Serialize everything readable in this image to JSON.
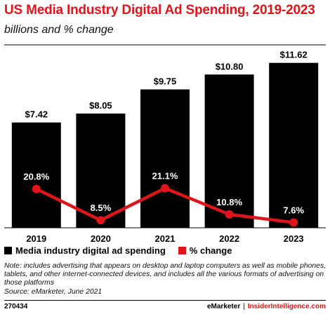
{
  "header": {
    "title": "US Media Industry Digital Ad Spending, 2019-2023",
    "subtitle": "billions and % change"
  },
  "colors": {
    "title": "#e0151c",
    "bar": "#000000",
    "line": "#e0151c"
  },
  "chart_data": {
    "type": "bar",
    "categories": [
      "2019",
      "2020",
      "2021",
      "2022",
      "2023"
    ],
    "series": [
      {
        "name": "Media industry digital ad spending",
        "type": "bar",
        "values": [
          7.42,
          8.05,
          9.75,
          10.8,
          11.62
        ],
        "labels": [
          "$7.42",
          "$8.05",
          "$9.75",
          "$10.80",
          "$11.62"
        ]
      },
      {
        "name": "% change",
        "type": "line",
        "values": [
          20.8,
          8.5,
          21.1,
          10.8,
          7.6
        ],
        "labels": [
          "20.8%",
          "8.5%",
          "21.1%",
          "10.8%",
          "7.6%"
        ]
      }
    ],
    "ylim": [
      0,
      12
    ],
    "grid": false,
    "legend_position": "bottom-left"
  },
  "legend": {
    "items": [
      {
        "label": "Media industry digital ad spending",
        "color": "#000000"
      },
      {
        "label": "% change",
        "color": "#e0151c"
      }
    ]
  },
  "note": {
    "line1": "Note: includes advertising that appears on desktop and laptop computers as well as mobile phones, tablets, and other internet-connected devices, and includes all the various formats of advertising on those platforms",
    "line2": "Source: eMarketer, June 2021"
  },
  "footer": {
    "id": "270434",
    "brand": "eMarketer",
    "separator": "|",
    "site": "InsiderIntelligence.com"
  }
}
